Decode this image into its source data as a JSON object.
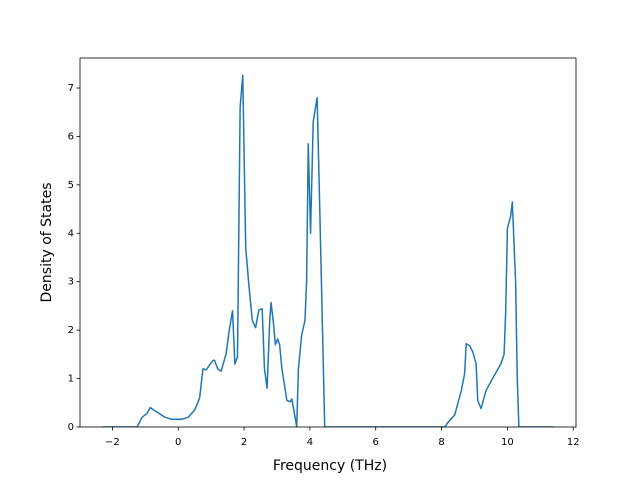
{
  "chart_data": {
    "type": "line",
    "xlabel": "Frequency (THz)",
    "ylabel": "Density of States",
    "xlim": [
      -2.985,
      12.085
    ],
    "ylim": [
      0,
      7.62
    ],
    "xticks": [
      {
        "value": -2,
        "label": "−2"
      },
      0,
      2,
      4,
      6,
      8,
      10,
      12
    ],
    "yticks": [
      0,
      1,
      2,
      3,
      4,
      5,
      6,
      7
    ],
    "x": [
      -2.3,
      -1.25,
      -1.1,
      -0.95,
      -0.85,
      -0.7,
      -0.4,
      -0.2,
      0.1,
      0.3,
      0.5,
      0.65,
      0.75,
      0.85,
      0.95,
      1.05,
      1.1,
      1.2,
      1.3,
      1.45,
      1.55,
      1.65,
      1.72,
      1.8,
      1.88,
      1.96,
      2.05,
      2.15,
      2.25,
      2.35,
      2.45,
      2.55,
      2.62,
      2.7,
      2.78,
      2.82,
      2.9,
      2.95,
      3.02,
      3.08,
      3.15,
      3.3,
      3.4,
      3.45,
      3.55,
      3.6,
      3.65,
      3.75,
      3.85,
      3.9,
      3.95,
      4.02,
      4.1,
      4.22,
      4.3,
      4.4,
      4.45,
      8.1,
      8.2,
      8.4,
      8.6,
      8.7,
      8.75,
      8.85,
      8.95,
      9.05,
      9.1,
      9.2,
      9.35,
      9.55,
      9.8,
      9.9,
      9.95,
      10.0,
      10.1,
      10.15,
      10.25,
      10.3,
      10.35,
      11.4
    ],
    "series": [
      {
        "color": "#1f77b4",
        "values": [
          0,
          0,
          0.2,
          0.28,
          0.4,
          0.33,
          0.2,
          0.16,
          0.16,
          0.2,
          0.35,
          0.6,
          1.2,
          1.18,
          1.28,
          1.37,
          1.38,
          1.2,
          1.15,
          1.5,
          2.0,
          2.4,
          1.3,
          1.45,
          6.6,
          7.26,
          3.7,
          2.9,
          2.2,
          2.05,
          2.42,
          2.44,
          1.2,
          0.8,
          2.2,
          2.57,
          2.1,
          1.7,
          1.82,
          1.7,
          1.2,
          0.55,
          0.52,
          0.58,
          0.2,
          0.0,
          1.2,
          1.9,
          2.2,
          3.0,
          5.85,
          4.0,
          6.3,
          6.8,
          4.5,
          1.5,
          0,
          0,
          0.1,
          0.25,
          0.75,
          1.1,
          1.72,
          1.68,
          1.55,
          1.3,
          0.55,
          0.38,
          0.75,
          1.0,
          1.3,
          1.5,
          2.4,
          4.1,
          4.35,
          4.65,
          3.0,
          1.0,
          0,
          0
        ]
      }
    ]
  }
}
